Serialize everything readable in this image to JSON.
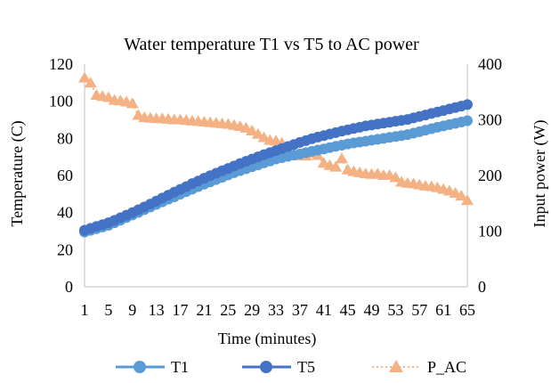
{
  "chart_data": {
    "type": "line",
    "title": "Water temperature T1 vs T5 to AC power",
    "xlabel": "Time (minutes)",
    "ylabel": "Temperature (C)",
    "y2label": "Input power (W)",
    "x_range": [
      1,
      65
    ],
    "x_ticks": [
      "1",
      "5",
      "9",
      "13",
      "17",
      "21",
      "25",
      "29",
      "33",
      "37",
      "41",
      "45",
      "49",
      "53",
      "57",
      "61",
      "65"
    ],
    "ylim": [
      0,
      120
    ],
    "y_ticks": [
      "0",
      "20",
      "40",
      "60",
      "80",
      "100",
      "120"
    ],
    "y2lim": [
      0,
      400
    ],
    "y2_ticks": [
      "0",
      "100",
      "200",
      "300",
      "400"
    ],
    "grid": false,
    "legend_position": "bottom",
    "colors": {
      "T1": "#5b9bd5",
      "T5": "#4472c4",
      "P_AC": "#f4b183"
    },
    "series": [
      {
        "name": "T1",
        "axis": "left",
        "values": [
          29.5,
          30.4,
          31.3,
          32.2,
          33.1,
          34.5,
          35.9,
          37.3,
          38.7,
          40.1,
          41.6,
          43.0,
          44.4,
          45.8,
          47.2,
          48.5,
          49.9,
          51.3,
          52.6,
          54.0,
          55.3,
          56.5,
          57.8,
          59.0,
          60.3,
          61.5,
          62.6,
          63.6,
          64.7,
          65.7,
          66.8,
          67.8,
          68.9,
          69.6,
          70.3,
          71.0,
          71.6,
          72.3,
          73.0,
          73.7,
          74.3,
          75.0,
          75.7,
          76.3,
          77.0,
          77.5,
          78.0,
          78.5,
          79.0,
          79.5,
          80.0,
          80.5,
          81.0,
          81.5,
          82.0,
          82.8,
          83.6,
          84.4,
          85.2,
          86.0,
          86.7,
          87.4,
          88.1,
          88.8,
          89.5
        ]
      },
      {
        "name": "T5",
        "axis": "left",
        "values": [
          30.5,
          31.5,
          32.5,
          33.5,
          34.5,
          35.8,
          37.2,
          38.6,
          40.0,
          41.5,
          43.0,
          44.6,
          46.2,
          47.8,
          49.4,
          51.0,
          52.5,
          54.0,
          55.6,
          57.0,
          58.5,
          59.9,
          61.2,
          62.5,
          63.8,
          65.1,
          66.4,
          67.6,
          68.8,
          70.0,
          71.2,
          72.3,
          73.4,
          74.5,
          75.6,
          76.7,
          77.8,
          78.8,
          79.8,
          80.7,
          81.5,
          82.3,
          83.1,
          83.9,
          84.6,
          85.3,
          86.0,
          86.7,
          87.2,
          87.7,
          88.2,
          88.7,
          89.2,
          89.7,
          90.2,
          91.0,
          91.8,
          92.6,
          93.4,
          94.2,
          95.0,
          95.8,
          96.6,
          97.4,
          98.2
        ]
      },
      {
        "name": "P_AC",
        "axis": "right",
        "values": [
          375,
          366,
          344,
          342,
          340,
          335,
          334,
          332,
          329,
          308,
          304,
          303,
          302,
          302,
          301,
          300,
          300,
          299,
          298,
          297,
          296,
          295,
          294,
          293,
          292,
          290,
          288,
          285,
          280,
          274,
          268,
          263,
          262,
          258,
          243,
          238,
          235,
          235,
          240,
          236,
          222,
          218,
          215,
          230,
          210,
          207,
          205,
          203,
          202,
          203,
          200,
          200,
          196,
          188,
          186,
          185,
          183,
          181,
          180,
          178,
          175,
          172,
          168,
          163,
          155
        ]
      }
    ]
  }
}
